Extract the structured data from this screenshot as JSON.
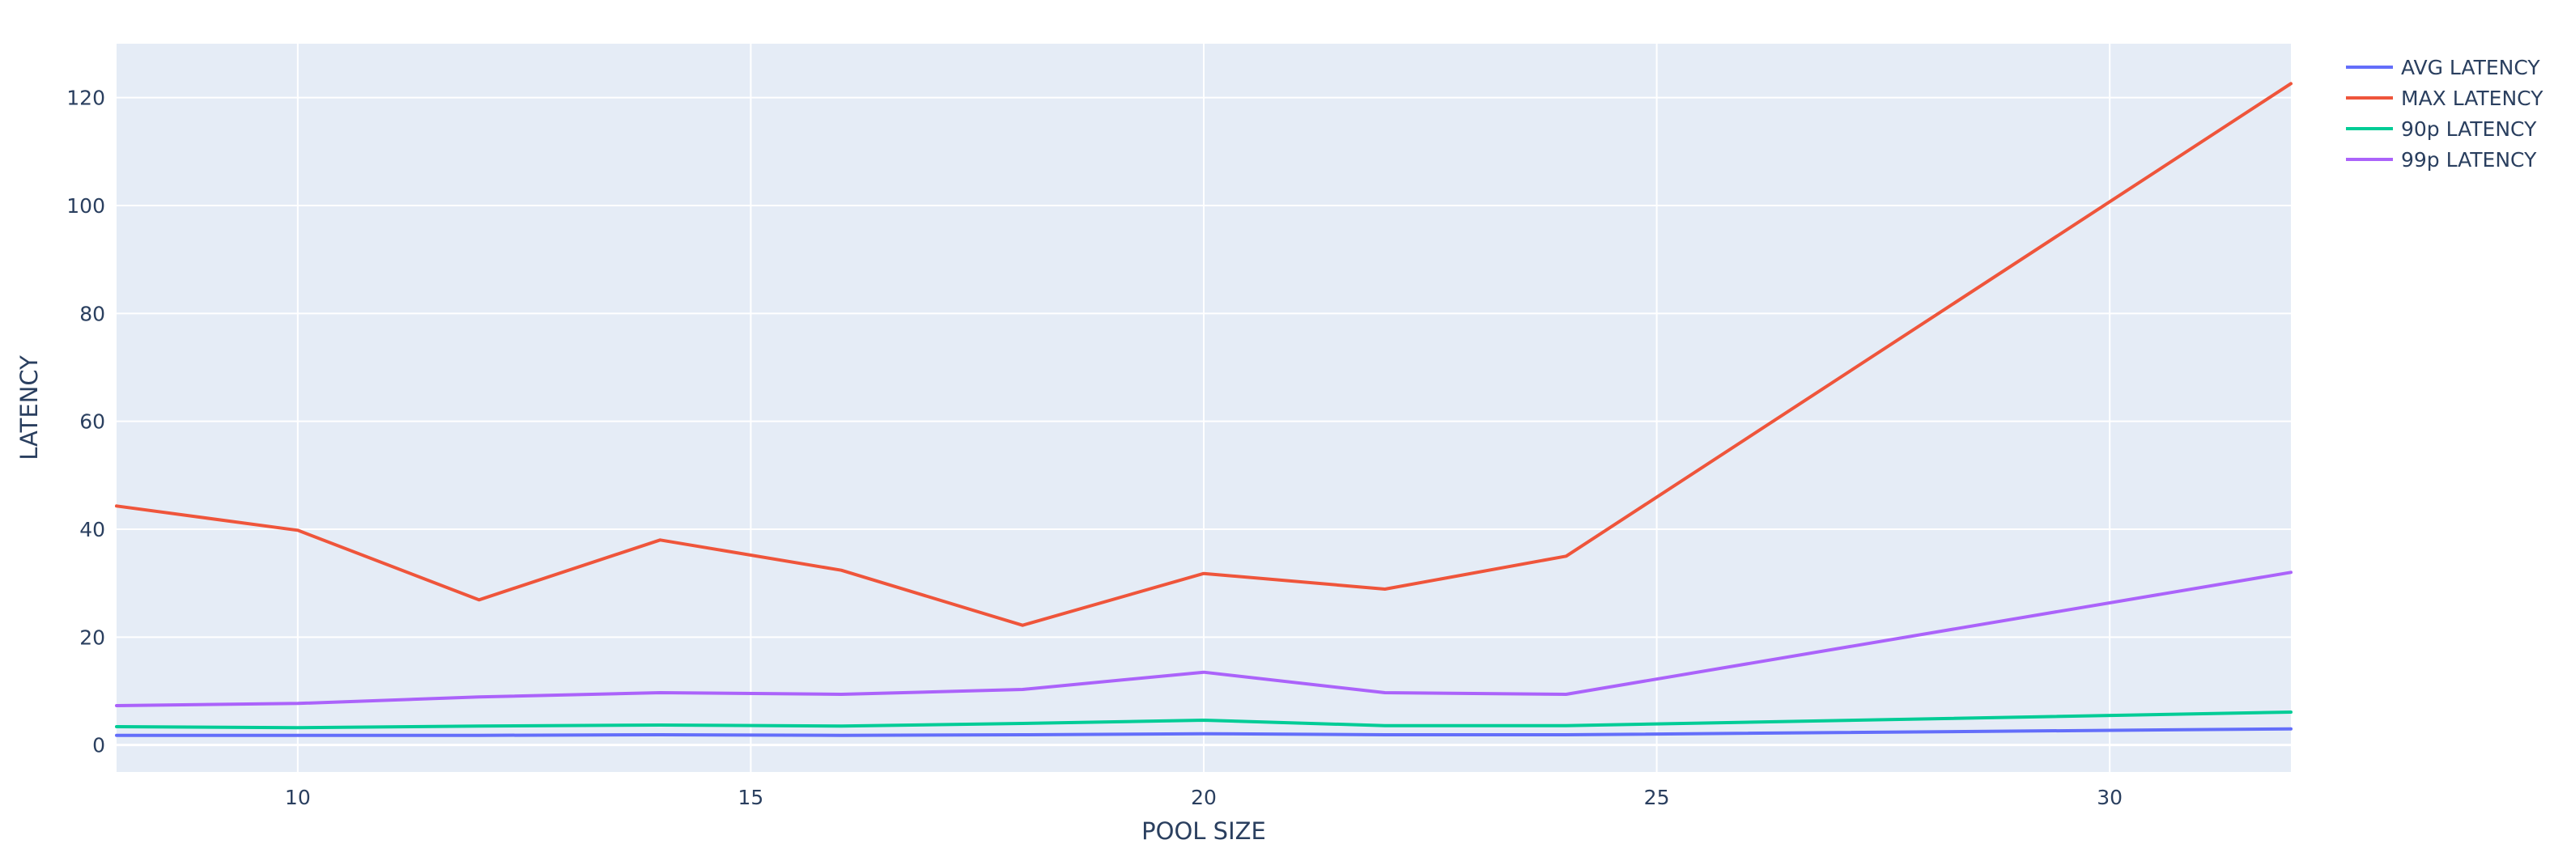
{
  "chart_data": {
    "type": "line",
    "xlabel": "POOL SIZE",
    "ylabel": "LATENCY",
    "xlim": [
      8,
      32
    ],
    "ylim": [
      -5,
      130
    ],
    "x_ticks": [
      10,
      15,
      20,
      25,
      30
    ],
    "y_ticks": [
      0,
      20,
      40,
      60,
      80,
      100,
      120
    ],
    "grid": true,
    "legend_position": "top-right",
    "plot_background": "#e5ecf6",
    "x": [
      8,
      10,
      12,
      14,
      16,
      18,
      20,
      22,
      24,
      32
    ],
    "series": [
      {
        "name": "AVG LATENCY",
        "color": "#636efa",
        "values": [
          1.8,
          1.8,
          1.8,
          1.9,
          1.8,
          1.9,
          2.1,
          1.9,
          1.9,
          3.0
        ]
      },
      {
        "name": "MAX LATENCY",
        "color": "#ef553b",
        "values": [
          44.3,
          39.8,
          26.9,
          38.0,
          32.4,
          22.2,
          31.8,
          28.9,
          35.0,
          122.6
        ]
      },
      {
        "name": "90p LATENCY",
        "color": "#00cc96",
        "values": [
          3.4,
          3.2,
          3.5,
          3.7,
          3.5,
          4.0,
          4.6,
          3.6,
          3.6,
          6.1
        ]
      },
      {
        "name": "99p LATENCY",
        "color": "#ab63fa",
        "values": [
          7.3,
          7.7,
          8.9,
          9.7,
          9.4,
          10.3,
          13.5,
          9.7,
          9.4,
          32.0
        ]
      }
    ]
  }
}
